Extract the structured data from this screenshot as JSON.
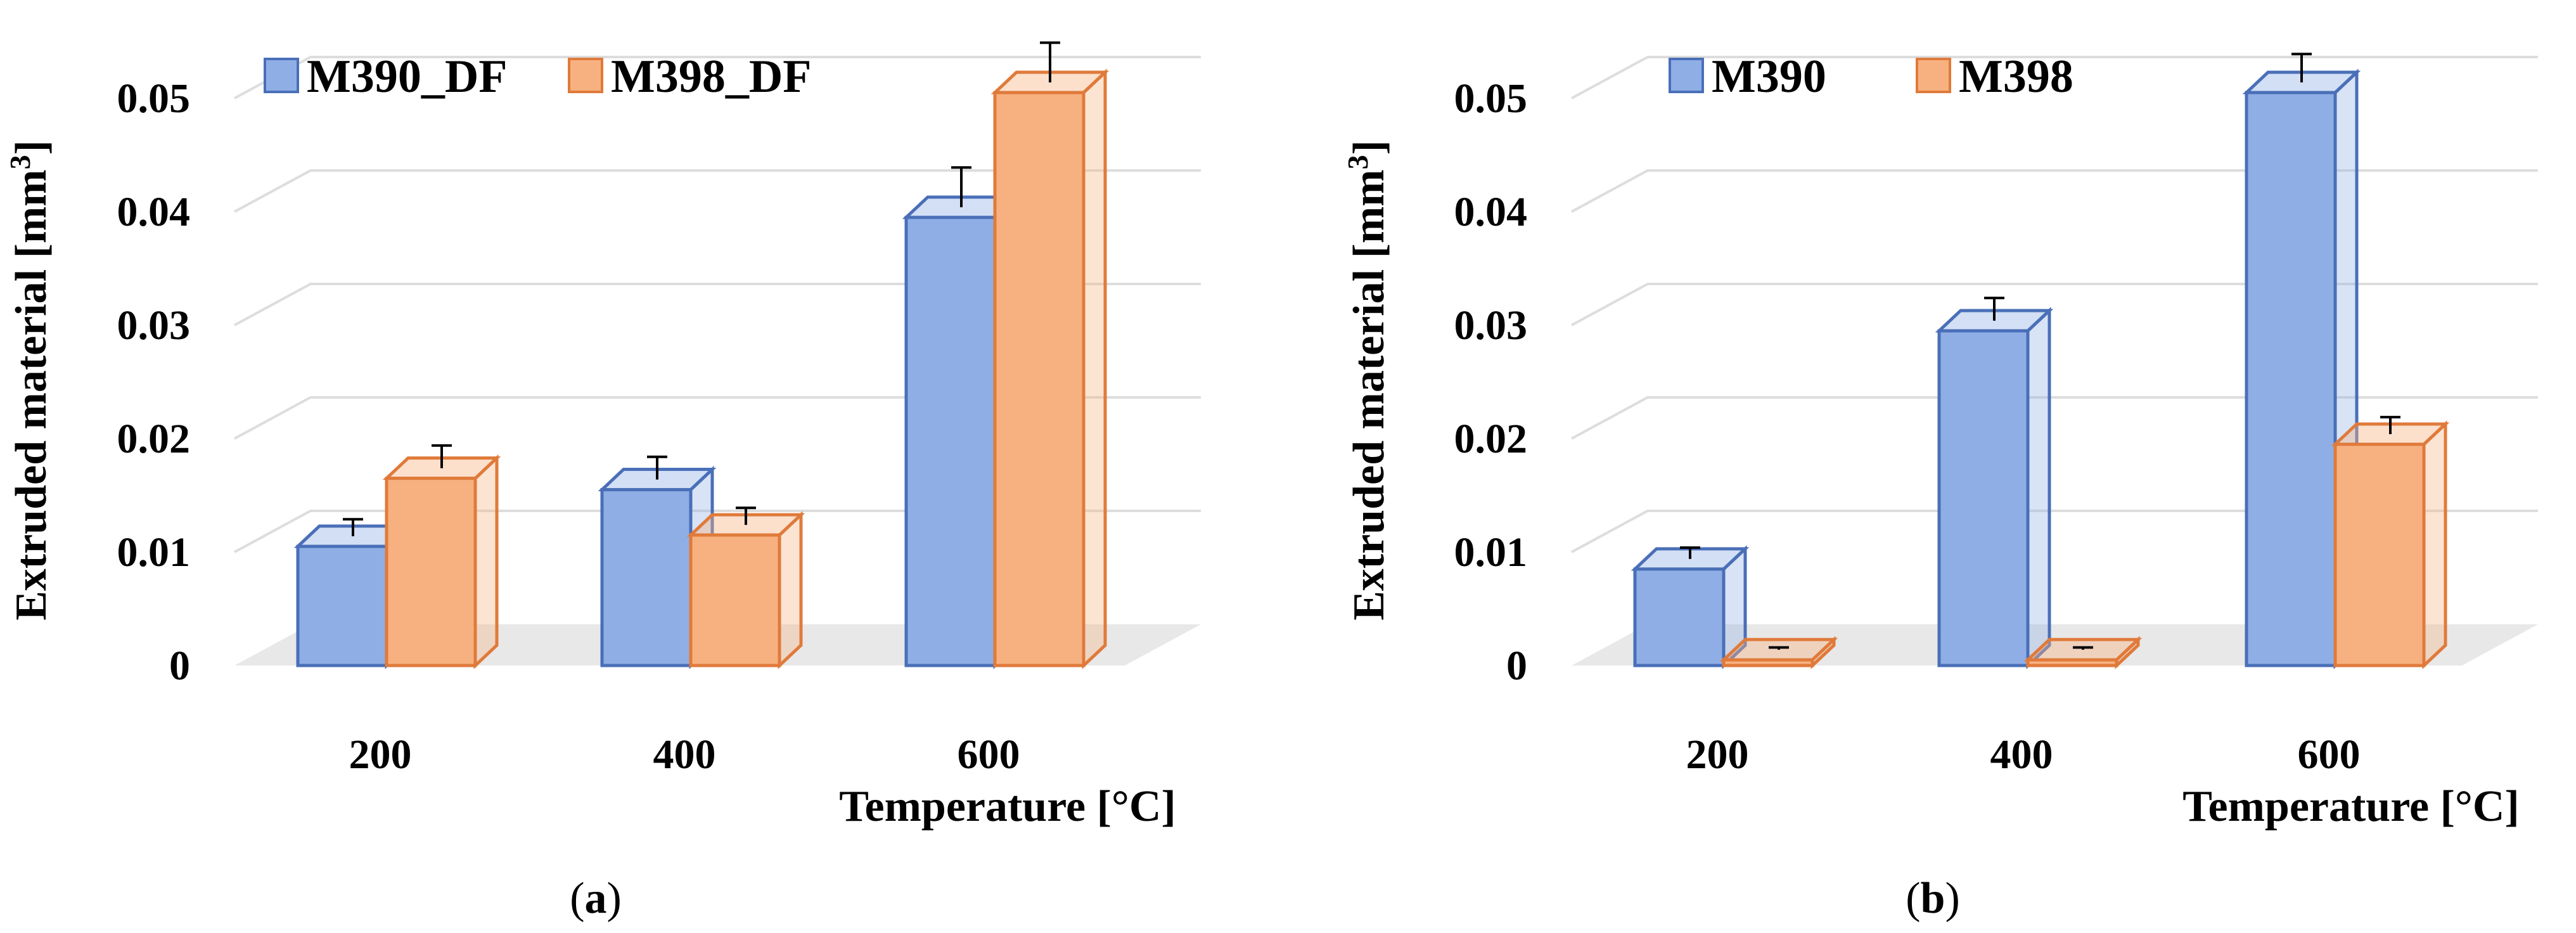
{
  "chart_data": [
    {
      "type": "bar",
      "id": "a",
      "panel_label": "a",
      "categories": [
        "200",
        "400",
        "600"
      ],
      "series": [
        {
          "name": "M390_DF",
          "values": [
            0.0105,
            0.0155,
            0.0395
          ],
          "errors": [
            0.0015,
            0.002,
            0.0035
          ],
          "color": "#8FAEE6",
          "edge": "#4A6FB8"
        },
        {
          "name": "M398_DF",
          "values": [
            0.0165,
            0.0115,
            0.0505
          ],
          "errors": [
            0.002,
            0.0015,
            0.0035
          ],
          "color": "#F7B180",
          "edge": "#E07A3A"
        }
      ],
      "ylabel_prefix": "Extruded  material [mm",
      "ylabel_sup": "3",
      "ylabel_suffix": "]",
      "xlabel": "Temperature  [°C]",
      "ylim": [
        0,
        0.05
      ],
      "yticks": [
        "0",
        "0.01",
        "0.02",
        "0.03",
        "0.04",
        "0.05"
      ],
      "legend_position": "top-left",
      "grid": true
    },
    {
      "type": "bar",
      "id": "b",
      "panel_label": "b",
      "categories": [
        "200",
        "400",
        "600"
      ],
      "series": [
        {
          "name": "M390",
          "values": [
            0.0085,
            0.0295,
            0.0505
          ],
          "errors": [
            0.001,
            0.002,
            0.0025
          ],
          "color": "#8FAEE6",
          "edge": "#4A6FB8"
        },
        {
          "name": "M398",
          "values": [
            0.0005,
            0.0005,
            0.0195
          ],
          "errors": [
            0.0002,
            0.0002,
            0.0015
          ],
          "color": "#F7B180",
          "edge": "#E07A3A"
        }
      ],
      "ylabel_prefix": "Extruded  material [mm",
      "ylabel_sup": "3",
      "ylabel_suffix": "]",
      "xlabel": "Temperature  [°C]",
      "ylim": [
        0,
        0.05
      ],
      "yticks": [
        "0",
        "0.01",
        "0.02",
        "0.03",
        "0.04",
        "0.05"
      ],
      "legend_position": "top-left",
      "grid": true
    }
  ]
}
